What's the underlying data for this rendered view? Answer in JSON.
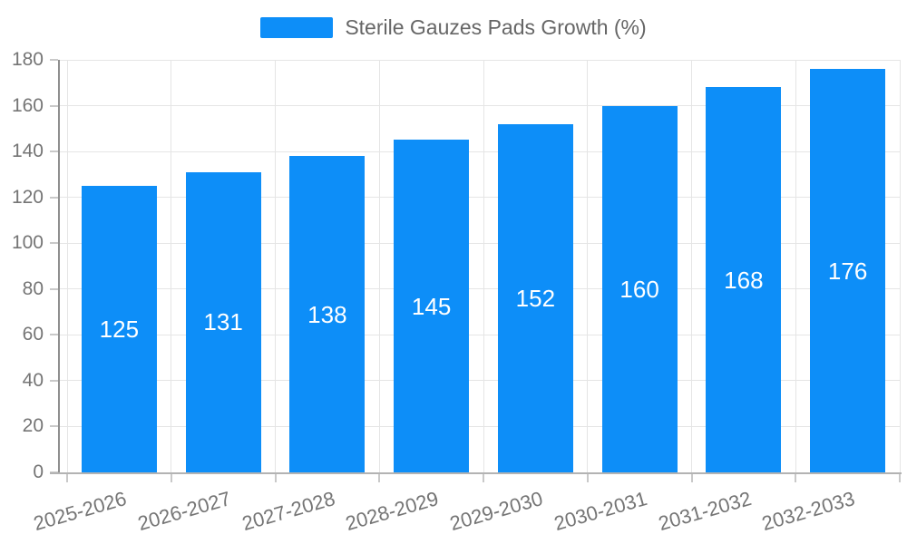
{
  "legend": {
    "label": "Sterile Gauzes Pads Growth (%)"
  },
  "chart_data": {
    "type": "bar",
    "title": "Sterile Gauzes Pads Growth (%)",
    "categories": [
      "2025-2026",
      "2026-2027",
      "2027-2028",
      "2028-2029",
      "2029-2030",
      "2030-2031",
      "2031-2032",
      "2032-2033"
    ],
    "values": [
      125,
      131,
      138,
      145,
      152,
      160,
      168,
      176
    ],
    "xlabel": "",
    "ylabel": "",
    "ylim": [
      0,
      180
    ],
    "ytick_step": 20,
    "yticks": [
      0,
      20,
      40,
      60,
      80,
      100,
      120,
      140,
      160,
      180
    ],
    "grid": true,
    "legend_position": "top",
    "bar_value_labels_visible": true
  },
  "colors": {
    "bar": "#0d8ef8",
    "bar_label": "#ffffff",
    "legend_text": "#666666",
    "axis_text": "#757575",
    "gridline": "#e5e5e5",
    "tick": "#c9c9c9",
    "y_axis_line": "#8f8f8f",
    "x_axis_line": "#b3b3b3",
    "background": "#ffffff"
  }
}
